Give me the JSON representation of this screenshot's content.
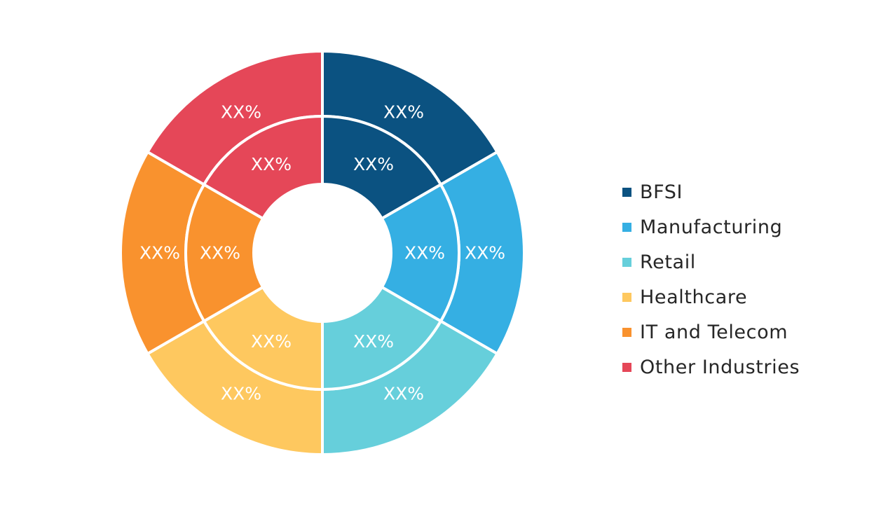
{
  "chart_data": {
    "type": "pie",
    "categories": [
      "BFSI",
      "Manufacturing",
      "Retail",
      "Healthcare",
      "IT and Telecom",
      "Other Industries"
    ],
    "colors": [
      "#0b5281",
      "#35afe3",
      "#66cfdb",
      "#fec85f",
      "#f9922e",
      "#e54758"
    ],
    "rings": [
      {
        "ring": "inner",
        "values": [
          1,
          1,
          1,
          1,
          1,
          1
        ],
        "labels": [
          "XX%",
          "XX%",
          "XX%",
          "XX%",
          "XX%",
          "XX%"
        ]
      },
      {
        "ring": "outer",
        "values": [
          1,
          1,
          1,
          1,
          1,
          1
        ],
        "labels": [
          "XX%",
          "XX%",
          "XX%",
          "XX%",
          "XX%",
          "XX%"
        ]
      }
    ],
    "legend": {
      "position": "right",
      "entries": [
        "BFSI",
        "Manufacturing",
        "Retail",
        "Healthcare",
        "IT and Telecom",
        "Other Industries"
      ]
    },
    "title": ""
  }
}
